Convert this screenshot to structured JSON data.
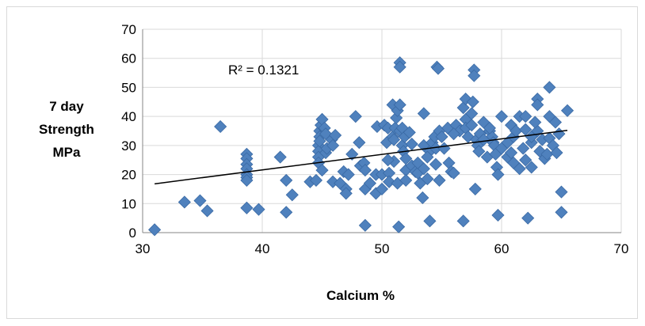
{
  "chart_data": {
    "type": "scatter",
    "title": "",
    "xlabel": "Calcium %",
    "ylabel_lines": [
      "7 day",
      "Strength",
      "MPa"
    ],
    "xlim": [
      30,
      70
    ],
    "ylim": [
      0,
      70
    ],
    "x_ticks": [
      "30",
      "40",
      "50",
      "60",
      "70"
    ],
    "y_ticks": [
      "0",
      "10",
      "20",
      "30",
      "40",
      "50",
      "60",
      "70"
    ],
    "grid": true,
    "legend": "none",
    "marker_color": "#4f81bd",
    "marker_edge_color": "#3a6aa5",
    "grid_color": "#d9d9d9",
    "annotation": "R² = 0.1321",
    "trendline": {
      "type": "linear",
      "x": [
        31,
        65.5
      ],
      "y": [
        16.8,
        35.2
      ]
    },
    "points": [
      [
        31,
        1
      ],
      [
        33.5,
        10.5
      ],
      [
        34.8,
        11
      ],
      [
        35.4,
        7.5
      ],
      [
        36.5,
        36.5
      ],
      [
        38.7,
        27
      ],
      [
        38.7,
        25.5
      ],
      [
        38.7,
        23.5
      ],
      [
        38.7,
        22
      ],
      [
        38.7,
        20
      ],
      [
        38.7,
        19
      ],
      [
        38.7,
        18
      ],
      [
        38.7,
        8.5
      ],
      [
        39.7,
        8
      ],
      [
        41.5,
        26
      ],
      [
        42,
        18
      ],
      [
        42,
        7
      ],
      [
        42.5,
        13
      ],
      [
        44,
        17.5
      ],
      [
        44.5,
        18
      ],
      [
        44.7,
        30
      ],
      [
        44.7,
        28
      ],
      [
        44.7,
        26
      ],
      [
        44.7,
        24
      ],
      [
        44.8,
        35
      ],
      [
        44.8,
        33
      ],
      [
        44.8,
        31.5
      ],
      [
        44.9,
        37
      ],
      [
        45,
        39
      ],
      [
        45,
        21.5
      ],
      [
        45.2,
        36
      ],
      [
        45.3,
        34
      ],
      [
        45.3,
        27.5
      ],
      [
        45.4,
        29
      ],
      [
        45.8,
        32
      ],
      [
        45.9,
        30
      ],
      [
        45.9,
        17.5
      ],
      [
        46.1,
        33.5
      ],
      [
        46.5,
        17
      ],
      [
        46.8,
        21
      ],
      [
        47,
        15
      ],
      [
        47,
        13.5
      ],
      [
        47.5,
        27
      ],
      [
        47.8,
        40
      ],
      [
        48.1,
        31
      ],
      [
        48.2,
        23
      ],
      [
        48.5,
        24
      ],
      [
        48.6,
        21.5
      ],
      [
        48.6,
        15
      ],
      [
        48.6,
        2.5
      ],
      [
        49,
        17
      ],
      [
        49.5,
        20
      ],
      [
        49.5,
        13.5
      ],
      [
        49.6,
        36.5
      ],
      [
        50,
        15
      ],
      [
        50,
        20
      ],
      [
        50.2,
        37
      ],
      [
        50.4,
        31
      ],
      [
        50.5,
        36
      ],
      [
        50.6,
        20.5
      ],
      [
        50.6,
        17.5
      ],
      [
        50.9,
        44
      ],
      [
        50.9,
        33
      ],
      [
        51,
        32
      ],
      [
        51,
        24.5
      ],
      [
        51.1,
        36
      ],
      [
        51.2,
        39.5
      ],
      [
        51.3,
        42
      ],
      [
        51.3,
        17
      ],
      [
        51.4,
        2
      ],
      [
        51.5,
        58.5
      ],
      [
        51.5,
        57
      ],
      [
        51.5,
        35
      ],
      [
        51.5,
        44
      ],
      [
        51.7,
        36
      ],
      [
        51.7,
        30
      ],
      [
        51.8,
        28
      ],
      [
        51.9,
        33
      ],
      [
        52,
        25.5
      ],
      [
        52,
        21.5
      ],
      [
        52,
        18
      ],
      [
        52.3,
        34.5
      ],
      [
        52.5,
        30.5
      ],
      [
        52.5,
        23
      ],
      [
        52.8,
        21
      ],
      [
        53,
        20.5
      ],
      [
        53,
        24
      ],
      [
        53.2,
        17
      ],
      [
        53.4,
        12
      ],
      [
        53.5,
        41
      ],
      [
        53.5,
        30
      ],
      [
        53.5,
        22
      ],
      [
        53.8,
        18.5
      ],
      [
        54,
        4
      ],
      [
        54,
        28
      ],
      [
        54.2,
        31
      ],
      [
        54.4,
        33
      ],
      [
        54.5,
        29
      ],
      [
        54.5,
        23.5
      ],
      [
        54.6,
        57
      ],
      [
        54.7,
        56.5
      ],
      [
        54.8,
        35
      ],
      [
        54.8,
        18
      ],
      [
        55,
        33
      ],
      [
        55.2,
        29
      ],
      [
        55.5,
        36
      ],
      [
        55.6,
        24
      ],
      [
        55.8,
        21
      ],
      [
        56,
        20.5
      ],
      [
        56.2,
        37
      ],
      [
        56.5,
        35
      ],
      [
        56.8,
        4
      ],
      [
        56.8,
        43
      ],
      [
        57,
        46
      ],
      [
        57,
        39
      ],
      [
        57,
        36
      ],
      [
        57.2,
        33
      ],
      [
        57.5,
        41
      ],
      [
        57.5,
        37
      ],
      [
        57.6,
        45
      ],
      [
        57.7,
        56
      ],
      [
        57.7,
        54
      ],
      [
        57.8,
        15
      ],
      [
        57.9,
        32
      ],
      [
        58,
        30
      ],
      [
        58.1,
        28
      ],
      [
        58.2,
        34
      ],
      [
        58.5,
        38
      ],
      [
        58.8,
        26
      ],
      [
        59,
        35
      ],
      [
        59.2,
        33
      ],
      [
        59.3,
        31
      ],
      [
        59.4,
        30
      ],
      [
        59.5,
        27
      ],
      [
        59.6,
        22.5
      ],
      [
        59.7,
        20
      ],
      [
        59.7,
        6
      ],
      [
        60,
        40
      ],
      [
        60,
        29
      ],
      [
        60.5,
        31
      ],
      [
        60.5,
        26
      ],
      [
        60.8,
        37
      ],
      [
        61,
        24
      ],
      [
        61,
        33
      ],
      [
        61.2,
        35
      ],
      [
        61.5,
        40
      ],
      [
        61.8,
        29
      ],
      [
        62,
        25
      ],
      [
        62,
        35.5
      ],
      [
        62,
        40
      ],
      [
        62.2,
        5
      ],
      [
        62.5,
        22.5
      ],
      [
        62.5,
        31
      ],
      [
        62.5,
        33
      ],
      [
        63,
        46
      ],
      [
        63,
        44
      ],
      [
        63,
        35
      ],
      [
        63.2,
        28
      ],
      [
        63.4,
        32
      ],
      [
        63.6,
        25.5
      ],
      [
        63.8,
        27
      ],
      [
        64,
        50
      ],
      [
        64,
        40
      ],
      [
        64,
        32.5
      ],
      [
        64.3,
        30
      ],
      [
        64.5,
        38
      ],
      [
        64.6,
        27.5
      ],
      [
        64.8,
        34
      ],
      [
        65,
        14
      ],
      [
        65,
        7
      ],
      [
        65.5,
        42
      ],
      [
        56,
        34
      ],
      [
        58.5,
        32
      ],
      [
        60.8,
        27.5
      ],
      [
        62.8,
        38
      ],
      [
        59,
        36
      ],
      [
        61.5,
        22
      ],
      [
        53.8,
        26
      ],
      [
        50.5,
        25
      ],
      [
        47.2,
        20
      ]
    ]
  }
}
